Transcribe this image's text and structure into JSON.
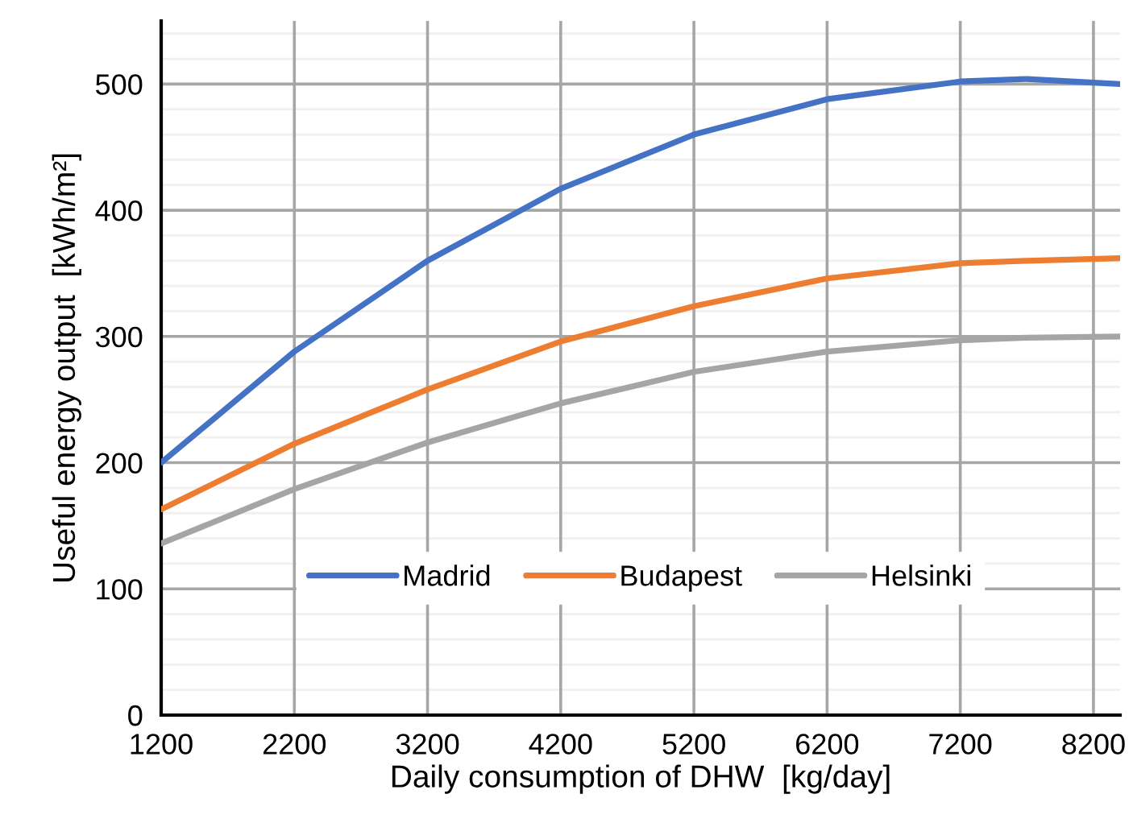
{
  "chart_data": {
    "type": "line",
    "xlabel": "Daily consumption of DHW  [kg/day]",
    "ylabel": "Useful energy output  [kWh/m²]",
    "x": [
      1200,
      2200,
      3200,
      4200,
      5200,
      6200,
      7200,
      7700,
      8400
    ],
    "series": [
      {
        "name": "Madrid",
        "color": "#4472c4",
        "values": [
          200,
          288,
          360,
          417,
          460,
          488,
          502,
          504,
          500
        ]
      },
      {
        "name": "Budapest",
        "color": "#ed7d31",
        "values": [
          163,
          215,
          258,
          296,
          324,
          346,
          358,
          360,
          362
        ]
      },
      {
        "name": "Helsinki",
        "color": "#a5a5a5",
        "values": [
          136,
          179,
          216,
          247,
          272,
          288,
          297,
          299,
          300
        ]
      }
    ],
    "xlim": [
      1200,
      8400
    ],
    "xticks": [
      1200,
      2200,
      3200,
      4200,
      5200,
      6200,
      7200,
      8200
    ],
    "ylim": [
      0,
      550
    ],
    "yticks": [
      0,
      100,
      200,
      300,
      400,
      500
    ],
    "grid": true,
    "legend": "bottom",
    "marker": "none",
    "line_style": "solid"
  }
}
